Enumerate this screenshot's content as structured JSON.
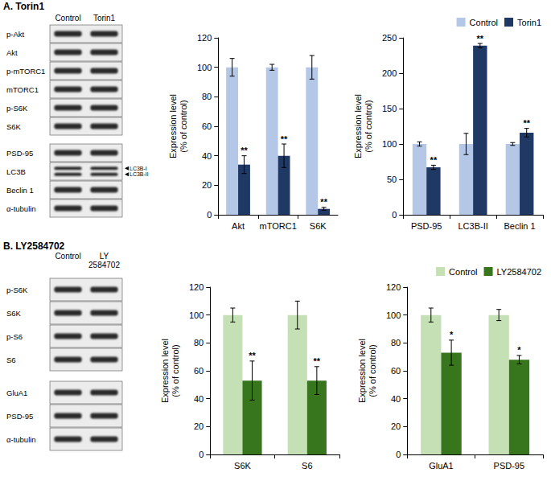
{
  "panels": [
    {
      "title": "A. Torin1",
      "lanes": [
        "Control",
        "Torin1"
      ],
      "row_groups": [
        [
          {
            "label": "p-Akt"
          },
          {
            "label": "Akt"
          },
          {
            "label": "p-mTORC1"
          },
          {
            "label": "mTORC1"
          },
          {
            "label": "p-S6K"
          },
          {
            "label": "S6K"
          }
        ],
        [
          {
            "label": "PSD-95"
          },
          {
            "label": "LC3B",
            "markers": [
              "LC3B-I",
              "LC3B-II"
            ]
          },
          {
            "label": "Beclin 1"
          },
          {
            "label": "α-tubulin"
          }
        ]
      ]
    },
    {
      "title": "B. LY2584702",
      "lanes": [
        "Control",
        "LY\n2584702"
      ],
      "row_groups": [
        [
          {
            "label": "p-S6K"
          },
          {
            "label": "S6K"
          },
          {
            "label": "p-S6"
          },
          {
            "label": "S6"
          }
        ],
        [
          {
            "label": "GluA1"
          },
          {
            "label": "PSD-95"
          },
          {
            "label": "α-tubulin"
          }
        ]
      ]
    }
  ],
  "chart_data": [
    {
      "type": "bar",
      "categories": [
        "Akt",
        "mTORC1",
        "S6K"
      ],
      "y_label": "Expression level\n(% of control)",
      "ylim": [
        0,
        120
      ],
      "yticks": [
        0,
        20,
        40,
        60,
        80,
        100,
        120
      ],
      "grid": false,
      "series": [
        {
          "name": "Control",
          "color": "#b4c7e7",
          "values": [
            100,
            100,
            100
          ],
          "errors": [
            6,
            2,
            8
          ]
        },
        {
          "name": "Torin1",
          "color": "#1f3864",
          "values": [
            34,
            40,
            4
          ],
          "errors": [
            6,
            8,
            1
          ],
          "significance": [
            "**",
            "**",
            "**"
          ]
        }
      ]
    },
    {
      "type": "bar",
      "categories": [
        "PSD-95",
        "LC3B-II",
        "Beclin 1"
      ],
      "y_label": "Expression level\n(% of control)",
      "ylim": [
        0,
        250
      ],
      "yticks": [
        0,
        50,
        100,
        150,
        200,
        250
      ],
      "grid": false,
      "legend": "top right",
      "series": [
        {
          "name": "Control",
          "color": "#b4c7e7",
          "values": [
            100,
            100,
            100
          ],
          "errors": [
            3,
            15,
            2
          ]
        },
        {
          "name": "Torin1",
          "color": "#1f3864",
          "values": [
            67,
            239,
            116
          ],
          "errors": [
            3,
            3,
            6
          ],
          "significance": [
            "**",
            "**",
            "**"
          ]
        }
      ]
    },
    {
      "type": "bar",
      "categories": [
        "S6K",
        "S6"
      ],
      "y_label": "Expression level\n(% of control)",
      "ylim": [
        0,
        120
      ],
      "yticks": [
        0,
        20,
        40,
        60,
        80,
        100,
        120
      ],
      "grid": false,
      "series": [
        {
          "name": "Control",
          "color": "#c5e0b4",
          "values": [
            100,
            100
          ],
          "errors": [
            5,
            10
          ]
        },
        {
          "name": "LY2584702",
          "color": "#38761d",
          "values": [
            53,
            53
          ],
          "errors": [
            14,
            10
          ],
          "significance": [
            "**",
            "**"
          ]
        }
      ]
    },
    {
      "type": "bar",
      "categories": [
        "GluA1",
        "PSD-95"
      ],
      "y_label": "Expression level\n(% of control)",
      "ylim": [
        0,
        120
      ],
      "yticks": [
        0,
        20,
        40,
        60,
        80,
        100,
        120
      ],
      "grid": false,
      "legend": "top right",
      "series": [
        {
          "name": "Control",
          "color": "#c5e0b4",
          "values": [
            100,
            100
          ],
          "errors": [
            5,
            4
          ]
        },
        {
          "name": "LY2584702",
          "color": "#38761d",
          "values": [
            73,
            68
          ],
          "errors": [
            9,
            3
          ],
          "significance": [
            "*",
            "*"
          ]
        }
      ]
    }
  ]
}
